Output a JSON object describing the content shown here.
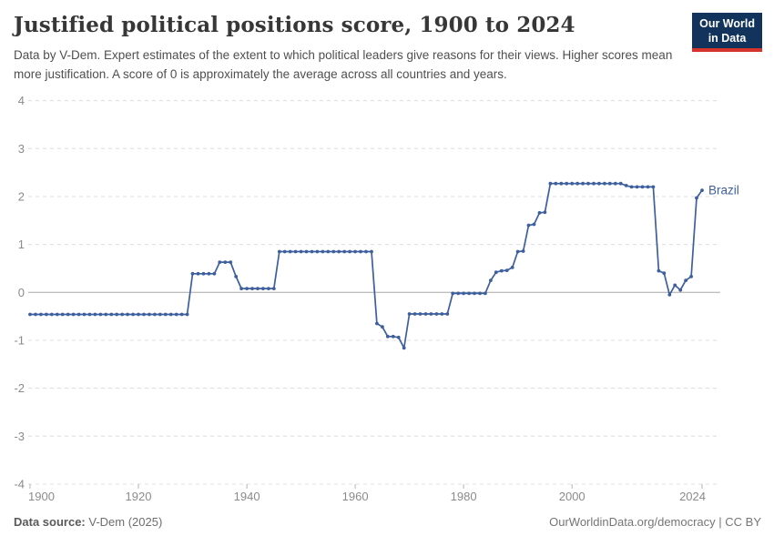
{
  "header": {
    "title": "Justified political positions score, 1900 to 2024",
    "subtitle": "Data by V-Dem. Expert estimates of the extent to which political leaders give reasons for their views. Higher scores mean more justification. A score of 0 is approximately the average across all countries and years.",
    "logo": {
      "line1": "Our World",
      "line2": "in Data",
      "bg_color": "#12335c",
      "stripe_color": "#d4342c"
    }
  },
  "chart_data": {
    "type": "line",
    "title": "Justified political positions score, 1900 to 2024",
    "xlabel": "",
    "ylabel": "",
    "xlim": [
      1900,
      2024
    ],
    "ylim": [
      -4,
      4
    ],
    "x_ticks": [
      1900,
      1920,
      1940,
      1960,
      1980,
      2000,
      2024
    ],
    "y_ticks": [
      4,
      3,
      2,
      1,
      0,
      -1,
      -2,
      -3,
      -4
    ],
    "grid": "horizontal-dashed",
    "legend_position": "end-of-line-label",
    "series": [
      {
        "name": "Brazil",
        "color": "#3d5f9e",
        "start_year": 1900,
        "values": [
          -0.46,
          -0.46,
          -0.46,
          -0.46,
          -0.46,
          -0.46,
          -0.46,
          -0.46,
          -0.46,
          -0.46,
          -0.46,
          -0.46,
          -0.46,
          -0.46,
          -0.46,
          -0.46,
          -0.46,
          -0.46,
          -0.46,
          -0.46,
          -0.46,
          -0.46,
          -0.46,
          -0.46,
          -0.46,
          -0.46,
          -0.46,
          -0.46,
          -0.46,
          -0.46,
          0.39,
          0.39,
          0.39,
          0.39,
          0.39,
          0.63,
          0.63,
          0.63,
          0.33,
          0.08,
          0.08,
          0.08,
          0.08,
          0.08,
          0.08,
          0.08,
          0.85,
          0.85,
          0.85,
          0.85,
          0.85,
          0.85,
          0.85,
          0.85,
          0.85,
          0.85,
          0.85,
          0.85,
          0.85,
          0.85,
          0.85,
          0.85,
          0.85,
          0.85,
          -0.65,
          -0.72,
          -0.92,
          -0.92,
          -0.94,
          -1.16,
          -0.45,
          -0.45,
          -0.45,
          -0.45,
          -0.45,
          -0.45,
          -0.45,
          -0.45,
          -0.02,
          -0.02,
          -0.02,
          -0.02,
          -0.02,
          -0.02,
          -0.02,
          0.25,
          0.42,
          0.45,
          0.46,
          0.52,
          0.85,
          0.86,
          1.4,
          1.42,
          1.66,
          1.67,
          2.27,
          2.27,
          2.27,
          2.27,
          2.27,
          2.27,
          2.27,
          2.27,
          2.27,
          2.27,
          2.27,
          2.27,
          2.27,
          2.27,
          2.23,
          2.2,
          2.2,
          2.2,
          2.2,
          2.2,
          0.45,
          0.4,
          -0.05,
          0.15,
          0.05,
          0.25,
          0.33,
          1.97,
          2.13
        ]
      }
    ]
  },
  "footer": {
    "source_label": "Data source:",
    "source_value": " V-Dem (2025)",
    "right_text": "OurWorldinData.org/democracy | CC BY"
  }
}
